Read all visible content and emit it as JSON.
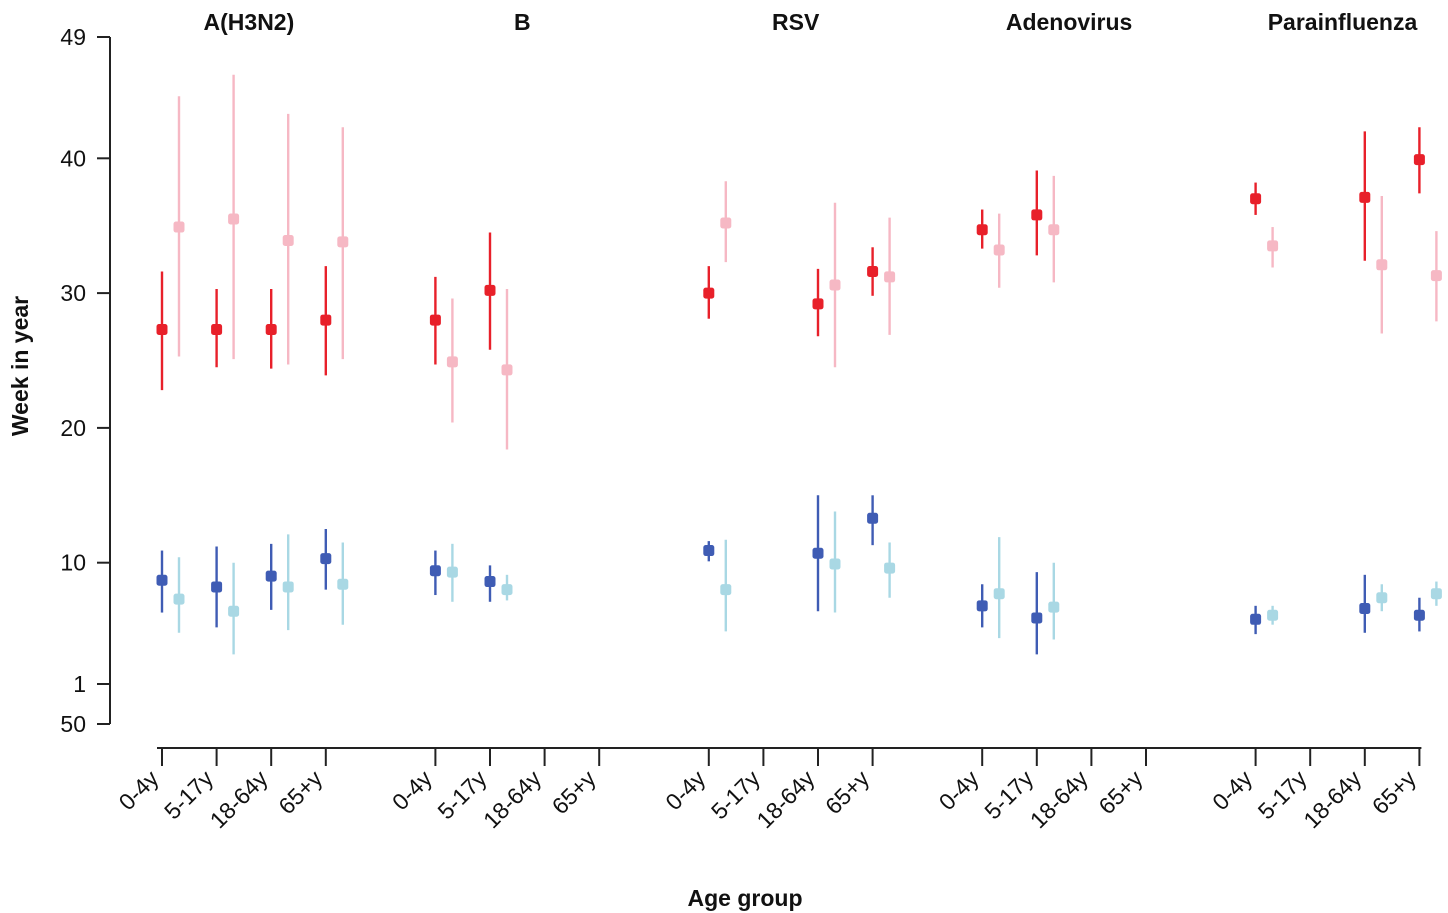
{
  "chart_data": {
    "type": "scatter",
    "ylabel": "Week in year",
    "xlabel": "Age group",
    "y_ticks": [
      "49",
      "40",
      "30",
      "20",
      "10",
      "1",
      "50"
    ],
    "age_groups": [
      "0-4y",
      "5-17y",
      "18-64y",
      "65+y"
    ],
    "colors": {
      "peak_dark": "#e8202a",
      "peak_light": "#f6b8c4",
      "onset_dark": "#3f5cb4",
      "onset_light": "#a9d8e4"
    },
    "panels": [
      {
        "title": "A(H3N2)",
        "groups": [
          {
            "age": "0-4y",
            "peak_dark": [
              27.3,
              22.8,
              31.6
            ],
            "peak_light": [
              34.9,
              25.3,
              44.6
            ],
            "onset_dark": [
              8.7,
              6.3,
              10.9
            ],
            "onset_light": [
              7.3,
              4.8,
              10.4
            ]
          },
          {
            "age": "5-17y",
            "peak_dark": [
              27.3,
              24.5,
              30.3
            ],
            "peak_light": [
              35.5,
              25.1,
              46.2
            ],
            "onset_dark": [
              8.2,
              5.2,
              11.2
            ],
            "onset_light": [
              6.4,
              3.2,
              10.0
            ]
          },
          {
            "age": "18-64y",
            "peak_dark": [
              27.3,
              24.4,
              30.3
            ],
            "peak_light": [
              33.9,
              24.7,
              43.3
            ],
            "onset_dark": [
              9.0,
              6.5,
              11.4
            ],
            "onset_light": [
              8.2,
              5.0,
              12.1
            ]
          },
          {
            "age": "65+y",
            "peak_dark": [
              28.0,
              23.9,
              32.0
            ],
            "peak_light": [
              33.8,
              25.1,
              42.3
            ],
            "onset_dark": [
              10.3,
              8.0,
              12.5
            ],
            "onset_light": [
              8.4,
              5.4,
              11.5
            ]
          }
        ]
      },
      {
        "title": "B",
        "groups": [
          {
            "age": "0-4y",
            "peak_dark": [
              28.0,
              24.7,
              31.2
            ],
            "peak_light": [
              24.9,
              20.4,
              29.6
            ],
            "onset_dark": [
              9.4,
              7.6,
              10.9
            ],
            "onset_light": [
              9.3,
              7.1,
              11.4
            ]
          },
          {
            "age": "5-17y",
            "peak_dark": [
              30.2,
              25.8,
              34.5
            ],
            "peak_light": [
              24.3,
              18.4,
              30.3
            ],
            "onset_dark": [
              8.6,
              7.1,
              9.8
            ],
            "onset_light": [
              8.0,
              7.2,
              9.1
            ]
          },
          {
            "age": "18-64y",
            "peak_dark": null,
            "peak_light": null,
            "onset_dark": null,
            "onset_light": null
          },
          {
            "age": "65+y",
            "peak_dark": null,
            "peak_light": null,
            "onset_dark": null,
            "onset_light": null
          }
        ]
      },
      {
        "title": "RSV",
        "groups": [
          {
            "age": "0-4y",
            "peak_dark": [
              30.0,
              28.1,
              32.0
            ],
            "peak_light": [
              35.2,
              32.3,
              38.3
            ],
            "onset_dark": [
              10.9,
              10.1,
              11.6
            ],
            "onset_light": [
              8.0,
              4.9,
              11.7
            ]
          },
          {
            "age": "5-17y",
            "peak_dark": null,
            "peak_light": null,
            "onset_dark": null,
            "onset_light": null
          },
          {
            "age": "18-64y",
            "peak_dark": [
              29.2,
              26.8,
              31.8
            ],
            "peak_light": [
              30.6,
              24.5,
              36.7
            ],
            "onset_dark": [
              10.7,
              6.4,
              15.0
            ],
            "onset_light": [
              9.9,
              6.3,
              13.8
            ]
          },
          {
            "age": "65+y",
            "peak_dark": [
              31.6,
              29.8,
              33.4
            ],
            "peak_light": [
              31.2,
              26.9,
              35.6
            ],
            "onset_dark": [
              13.3,
              11.3,
              15.0
            ],
            "onset_light": [
              9.6,
              7.4,
              11.5
            ]
          }
        ]
      },
      {
        "title": "Adenovirus",
        "groups": [
          {
            "age": "0-4y",
            "peak_dark": [
              34.7,
              33.3,
              36.2
            ],
            "peak_light": [
              33.2,
              30.4,
              35.9
            ],
            "onset_dark": [
              6.8,
              5.2,
              8.4
            ],
            "onset_light": [
              7.7,
              4.4,
              11.9
            ]
          },
          {
            "age": "5-17y",
            "peak_dark": [
              35.8,
              32.8,
              39.1
            ],
            "peak_light": [
              34.7,
              30.8,
              38.7
            ],
            "onset_dark": [
              5.9,
              3.2,
              9.3
            ],
            "onset_light": [
              6.7,
              4.3,
              10.0
            ]
          },
          {
            "age": "18-64y",
            "peak_dark": null,
            "peak_light": null,
            "onset_dark": null,
            "onset_light": null
          },
          {
            "age": "65+y",
            "peak_dark": null,
            "peak_light": null,
            "onset_dark": null,
            "onset_light": null
          }
        ]
      },
      {
        "title": "Parainfluenza",
        "groups": [
          {
            "age": "0-4y",
            "peak_dark": [
              37.0,
              35.8,
              38.2
            ],
            "peak_light": [
              33.5,
              31.9,
              34.9
            ],
            "onset_dark": [
              5.8,
              4.7,
              6.8
            ],
            "onset_light": [
              6.1,
              5.4,
              6.8
            ]
          },
          {
            "age": "5-17y",
            "peak_dark": null,
            "peak_light": null,
            "onset_dark": null,
            "onset_light": null
          },
          {
            "age": "18-64y",
            "peak_dark": [
              37.1,
              32.4,
              42.0
            ],
            "peak_light": [
              32.1,
              27.0,
              37.2
            ],
            "onset_dark": [
              6.6,
              4.8,
              9.1
            ],
            "onset_light": [
              7.4,
              6.4,
              8.4
            ]
          },
          {
            "age": "65+y",
            "peak_dark": [
              39.9,
              37.4,
              42.3
            ],
            "peak_light": [
              31.3,
              27.9,
              34.6
            ],
            "onset_dark": [
              6.1,
              4.9,
              7.4
            ],
            "onset_light": [
              7.7,
              6.8,
              8.6
            ]
          }
        ]
      }
    ]
  }
}
